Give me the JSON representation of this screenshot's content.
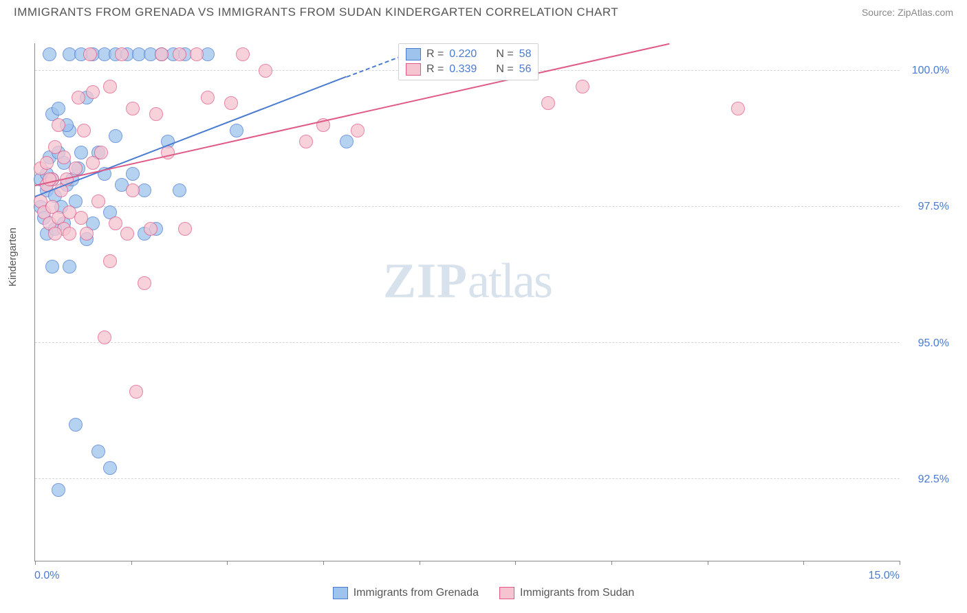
{
  "header": {
    "title": "IMMIGRANTS FROM GRENADA VS IMMIGRANTS FROM SUDAN KINDERGARTEN CORRELATION CHART",
    "source_label": "Source:",
    "source_name": "ZipAtlas.com"
  },
  "chart": {
    "type": "scatter",
    "y_axis_title": "Kindergarten",
    "x_range": [
      0.0,
      15.0
    ],
    "y_range": [
      91.0,
      100.5
    ],
    "x_tick_positions": [
      0.0,
      1.67,
      3.33,
      5.0,
      6.67,
      8.33,
      10.0,
      11.67,
      13.33,
      15.0
    ],
    "x_tick_labels": {
      "min": "0.0%",
      "max": "15.0%"
    },
    "y_grid": [
      92.5,
      95.0,
      97.5,
      100.0
    ],
    "y_tick_labels": [
      "92.5%",
      "95.0%",
      "97.5%",
      "100.0%"
    ],
    "point_radius": 10,
    "point_stroke_width": 1,
    "background_color": "#ffffff",
    "grid_color": "#d5d5d5",
    "series": [
      {
        "name": "Immigrants from Grenada",
        "color_fill": "#9ec3ed",
        "color_stroke": "#4a7bd0",
        "r_value": "0.220",
        "n_value": "58",
        "trend_start": [
          0.0,
          97.7
        ],
        "trend_end_solid": [
          5.4,
          99.9
        ],
        "trend_end_dashed": [
          6.9,
          100.5
        ],
        "points": [
          [
            0.1,
            97.5
          ],
          [
            0.1,
            98.0
          ],
          [
            0.15,
            97.3
          ],
          [
            0.2,
            98.1
          ],
          [
            0.2,
            97.8
          ],
          [
            0.2,
            97.0
          ],
          [
            0.25,
            100.3
          ],
          [
            0.25,
            98.4
          ],
          [
            0.3,
            98.0
          ],
          [
            0.3,
            99.2
          ],
          [
            0.3,
            96.4
          ],
          [
            0.35,
            97.7
          ],
          [
            0.4,
            99.3
          ],
          [
            0.4,
            98.5
          ],
          [
            0.4,
            92.3
          ],
          [
            0.5,
            97.2
          ],
          [
            0.5,
            98.3
          ],
          [
            0.55,
            97.9
          ],
          [
            0.6,
            96.4
          ],
          [
            0.6,
            100.3
          ],
          [
            0.6,
            98.9
          ],
          [
            0.7,
            93.5
          ],
          [
            0.7,
            97.6
          ],
          [
            0.75,
            98.2
          ],
          [
            0.8,
            100.3
          ],
          [
            0.8,
            98.5
          ],
          [
            0.9,
            96.9
          ],
          [
            0.9,
            99.5
          ],
          [
            1.0,
            100.3
          ],
          [
            1.0,
            97.2
          ],
          [
            1.1,
            93.0
          ],
          [
            1.1,
            98.5
          ],
          [
            1.2,
            100.3
          ],
          [
            1.2,
            98.1
          ],
          [
            1.3,
            92.7
          ],
          [
            1.3,
            97.4
          ],
          [
            1.4,
            100.3
          ],
          [
            1.4,
            98.8
          ],
          [
            1.5,
            97.9
          ],
          [
            1.6,
            100.3
          ],
          [
            1.7,
            98.1
          ],
          [
            1.8,
            100.3
          ],
          [
            1.9,
            97.0
          ],
          [
            1.9,
            97.8
          ],
          [
            2.0,
            100.3
          ],
          [
            2.1,
            97.1
          ],
          [
            2.2,
            100.3
          ],
          [
            2.3,
            98.7
          ],
          [
            2.4,
            100.3
          ],
          [
            2.5,
            97.8
          ],
          [
            2.6,
            100.3
          ],
          [
            3.0,
            100.3
          ],
          [
            3.5,
            98.9
          ],
          [
            5.4,
            98.7
          ],
          [
            0.35,
            97.1
          ],
          [
            0.45,
            97.5
          ],
          [
            0.55,
            99.0
          ],
          [
            0.65,
            98.0
          ]
        ]
      },
      {
        "name": "Immigrants from Sudan",
        "color_fill": "#f5c4d0",
        "color_stroke": "#e05a87",
        "r_value": "0.339",
        "n_value": "56",
        "trend_start": [
          0.0,
          97.9
        ],
        "trend_end_solid": [
          11.0,
          100.5
        ],
        "points": [
          [
            0.1,
            97.6
          ],
          [
            0.1,
            98.2
          ],
          [
            0.15,
            97.4
          ],
          [
            0.2,
            97.9
          ],
          [
            0.2,
            98.3
          ],
          [
            0.25,
            97.2
          ],
          [
            0.3,
            98.0
          ],
          [
            0.3,
            97.5
          ],
          [
            0.35,
            98.6
          ],
          [
            0.4,
            97.3
          ],
          [
            0.4,
            99.0
          ],
          [
            0.45,
            97.8
          ],
          [
            0.5,
            98.4
          ],
          [
            0.5,
            97.1
          ],
          [
            0.55,
            98.0
          ],
          [
            0.6,
            97.4
          ],
          [
            0.6,
            97.0
          ],
          [
            0.7,
            98.2
          ],
          [
            0.75,
            99.5
          ],
          [
            0.8,
            97.3
          ],
          [
            0.85,
            98.9
          ],
          [
            0.9,
            97.0
          ],
          [
            0.95,
            100.3
          ],
          [
            1.0,
            98.3
          ],
          [
            1.0,
            99.6
          ],
          [
            1.1,
            97.6
          ],
          [
            1.15,
            98.5
          ],
          [
            1.2,
            95.1
          ],
          [
            1.3,
            96.5
          ],
          [
            1.3,
            99.7
          ],
          [
            1.4,
            97.2
          ],
          [
            1.5,
            100.3
          ],
          [
            1.6,
            97.0
          ],
          [
            1.7,
            99.3
          ],
          [
            1.7,
            97.8
          ],
          [
            1.75,
            94.1
          ],
          [
            1.9,
            96.1
          ],
          [
            2.0,
            97.1
          ],
          [
            2.1,
            99.2
          ],
          [
            2.2,
            100.3
          ],
          [
            2.3,
            98.5
          ],
          [
            2.5,
            100.3
          ],
          [
            2.6,
            97.1
          ],
          [
            2.8,
            100.3
          ],
          [
            3.0,
            99.5
          ],
          [
            3.4,
            99.4
          ],
          [
            3.6,
            100.3
          ],
          [
            4.0,
            100.0
          ],
          [
            4.7,
            98.7
          ],
          [
            5.0,
            99.0
          ],
          [
            5.6,
            98.9
          ],
          [
            8.9,
            99.4
          ],
          [
            9.5,
            99.7
          ],
          [
            12.2,
            99.3
          ],
          [
            0.35,
            97.0
          ],
          [
            0.25,
            98.0
          ]
        ]
      }
    ],
    "legend": {
      "r_label": "R =",
      "n_label": "N ="
    },
    "watermark": {
      "zip": "ZIP",
      "atlas": "atlas"
    }
  }
}
